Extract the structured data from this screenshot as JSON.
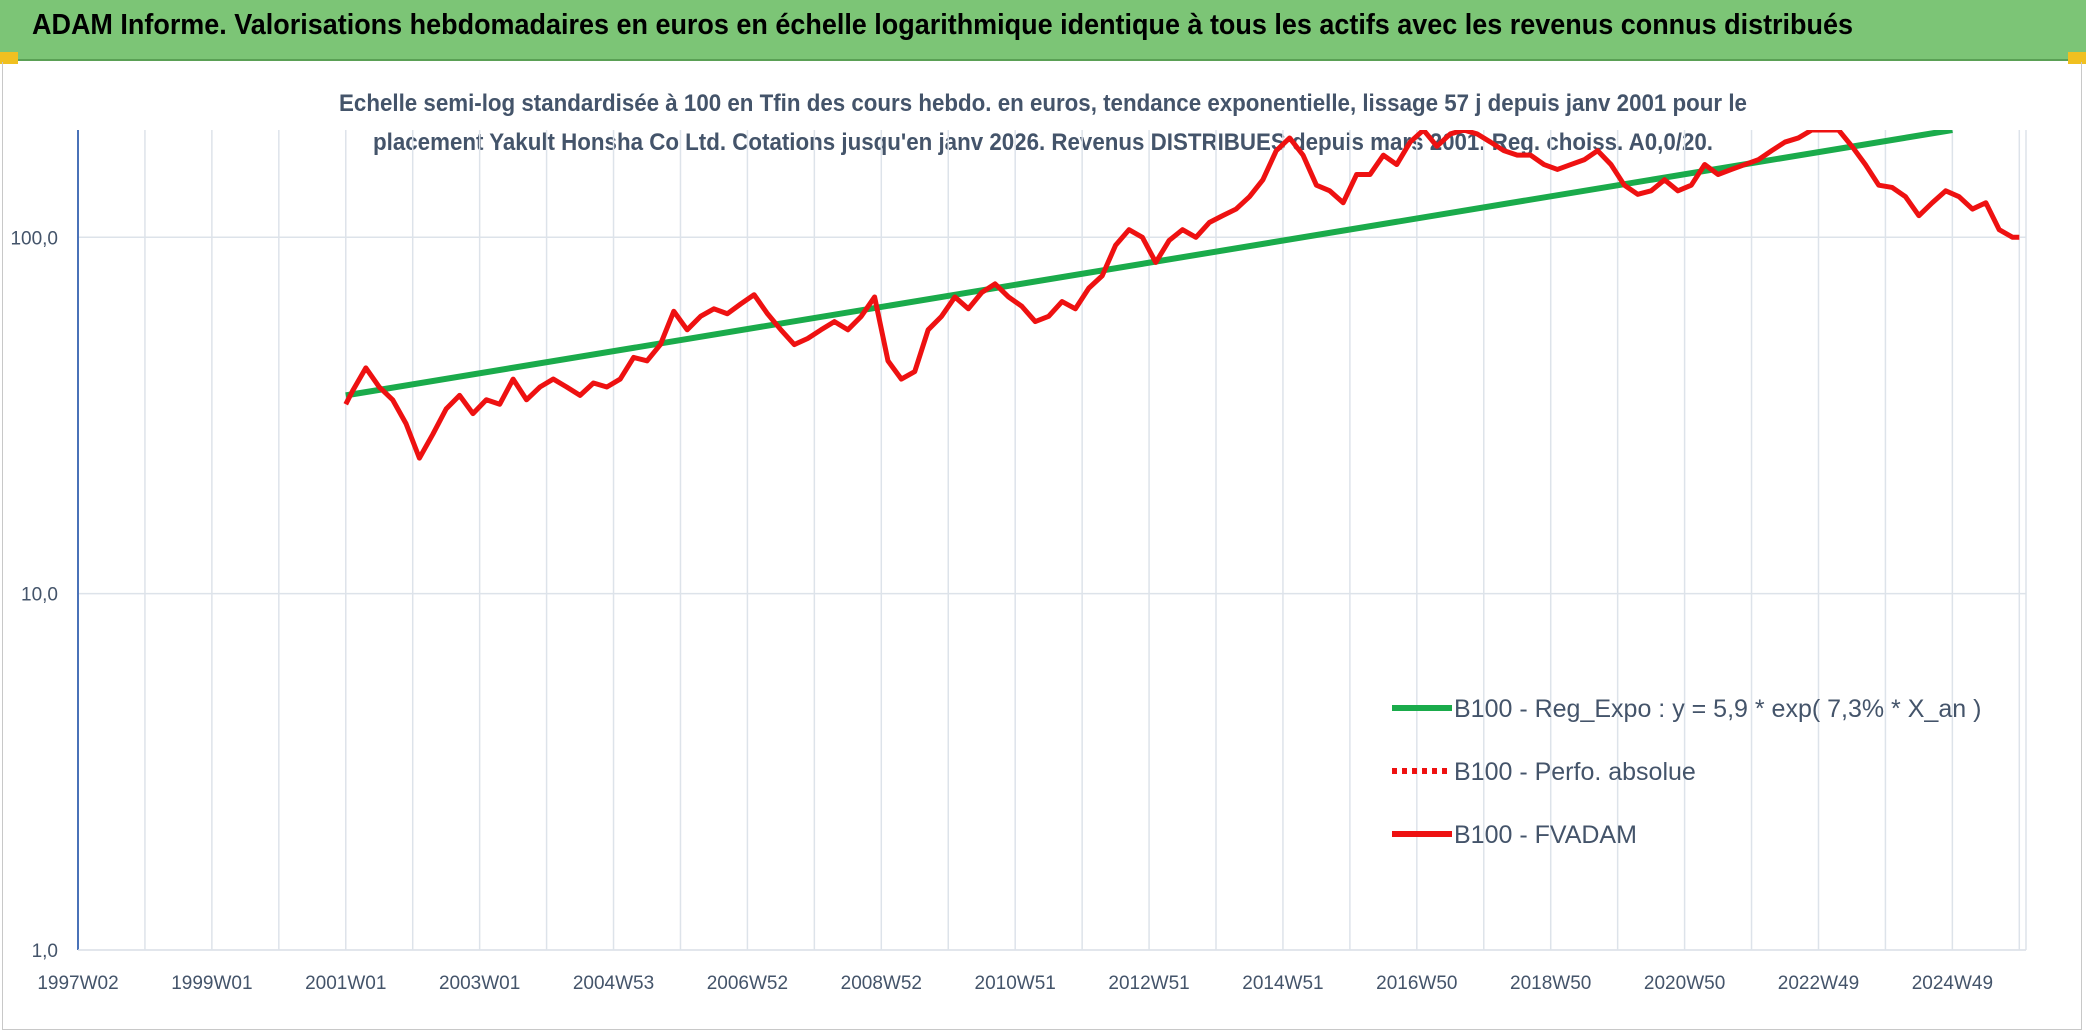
{
  "header": {
    "title": "ADAM Informe. Valorisations hebdomadaires en euros en échelle logarithmique identique à tous les actifs avec les revenus connus distribués"
  },
  "colors": {
    "banner": "#7cc576",
    "regression": "#1aab4b",
    "fvadam": "#ee1111",
    "perf": "#ee1111",
    "grid": "#dde3ea",
    "axis": "#4a72b8",
    "text": "#44546a"
  },
  "chart_data": {
    "type": "line",
    "title_lines": [
      "Echelle semi-log standardisée à 100 en Tfin des cours hebdo. en euros, tendance exponentielle, lissage 57 j depuis janv 2001 pour le",
      "placement Yakult Honsha Co Ltd. Cotations jusqu'en janv 2026. Revenus DISTRIBUES depuis mars 2001. Reg. choiss. A0,0/20."
    ],
    "y_scale": "log",
    "ylim": [
      1,
      200
    ],
    "y_ticks": [
      1,
      10,
      100
    ],
    "y_tick_labels": [
      "1,0",
      "10,0",
      "100,0"
    ],
    "xlim": [
      1997.0,
      2026.1
    ],
    "x_tick_labels": [
      "1997W02",
      "1999W01",
      "2001W01",
      "2003W01",
      "2004W53",
      "2006W52",
      "2008W52",
      "2010W51",
      "2012W51",
      "2014W51",
      "2016W50",
      "2018W50",
      "2020W50",
      "2022W49",
      "2024W49"
    ],
    "x_tick_years": [
      1997.0,
      1999.0,
      2001.0,
      2003.0,
      2005.0,
      2007.0,
      2009.0,
      2011.0,
      2013.0,
      2015.0,
      2017.0,
      2019.0,
      2021.0,
      2023.0,
      2025.0
    ],
    "grid": true,
    "legend_position": "bottom-right",
    "series": [
      {
        "name": "B100 - Reg_Expo : y = 5,9 * exp( 7,3% *  X_an )",
        "style": "solid",
        "color": "#1aab4b",
        "x": [
          2001.0,
          2025.0
        ],
        "y": [
          36,
          200
        ]
      },
      {
        "name": "B100 - Perfo. absolue",
        "style": "dotted",
        "color": "#ee1111",
        "x": [],
        "y": []
      },
      {
        "name": "B100 - FVADAM",
        "style": "solid",
        "color": "#ee1111",
        "x": [
          2001.0,
          2001.1,
          2001.3,
          2001.5,
          2001.7,
          2001.9,
          2002.1,
          2002.3,
          2002.5,
          2002.7,
          2002.9,
          2003.1,
          2003.3,
          2003.5,
          2003.7,
          2003.9,
          2004.1,
          2004.3,
          2004.5,
          2004.7,
          2004.9,
          2005.1,
          2005.3,
          2005.5,
          2005.7,
          2005.9,
          2006.1,
          2006.3,
          2006.5,
          2006.7,
          2006.9,
          2007.1,
          2007.3,
          2007.5,
          2007.7,
          2007.9,
          2008.1,
          2008.3,
          2008.5,
          2008.7,
          2008.9,
          2009.1,
          2009.3,
          2009.5,
          2009.7,
          2009.9,
          2010.1,
          2010.3,
          2010.5,
          2010.7,
          2010.9,
          2011.1,
          2011.3,
          2011.5,
          2011.7,
          2011.9,
          2012.1,
          2012.3,
          2012.5,
          2012.7,
          2012.9,
          2013.1,
          2013.3,
          2013.5,
          2013.7,
          2013.9,
          2014.1,
          2014.3,
          2014.5,
          2014.7,
          2014.9,
          2015.1,
          2015.3,
          2015.5,
          2015.7,
          2015.9,
          2016.1,
          2016.3,
          2016.5,
          2016.7,
          2016.9,
          2017.1,
          2017.3,
          2017.5,
          2017.7,
          2017.9,
          2018.1,
          2018.3,
          2018.5,
          2018.7,
          2018.9,
          2019.1,
          2019.3,
          2019.5,
          2019.7,
          2019.9,
          2020.1,
          2020.3,
          2020.5,
          2020.7,
          2020.9,
          2021.1,
          2021.3,
          2021.5,
          2021.7,
          2021.9,
          2022.1,
          2022.3,
          2022.5,
          2022.7,
          2022.9,
          2023.1,
          2023.3,
          2023.5,
          2023.7,
          2023.9,
          2024.1,
          2024.3,
          2024.5,
          2024.7,
          2024.9,
          2025.1,
          2025.3,
          2025.5,
          2025.7,
          2025.9,
          2026.0
        ],
        "y": [
          34,
          37,
          43,
          38,
          35,
          30,
          24,
          28,
          33,
          36,
          32,
          35,
          34,
          40,
          35,
          38,
          40,
          38,
          36,
          39,
          38,
          40,
          46,
          45,
          50,
          62,
          55,
          60,
          63,
          61,
          65,
          69,
          61,
          55,
          50,
          52,
          55,
          58,
          55,
          60,
          68,
          45,
          40,
          42,
          55,
          60,
          68,
          63,
          70,
          74,
          68,
          64,
          58,
          60,
          66,
          63,
          72,
          78,
          95,
          105,
          100,
          85,
          98,
          105,
          100,
          110,
          115,
          120,
          130,
          145,
          175,
          190,
          170,
          140,
          135,
          125,
          150,
          150,
          170,
          160,
          185,
          200,
          180,
          195,
          200,
          195,
          185,
          175,
          170,
          170,
          160,
          155,
          160,
          165,
          175,
          160,
          140,
          132,
          135,
          145,
          135,
          140,
          160,
          150,
          155,
          160,
          165,
          175,
          185,
          190,
          200,
          200,
          200,
          180,
          160,
          140,
          138,
          130,
          115,
          125,
          135,
          130,
          120,
          125,
          105,
          100,
          100
        ]
      }
    ]
  }
}
